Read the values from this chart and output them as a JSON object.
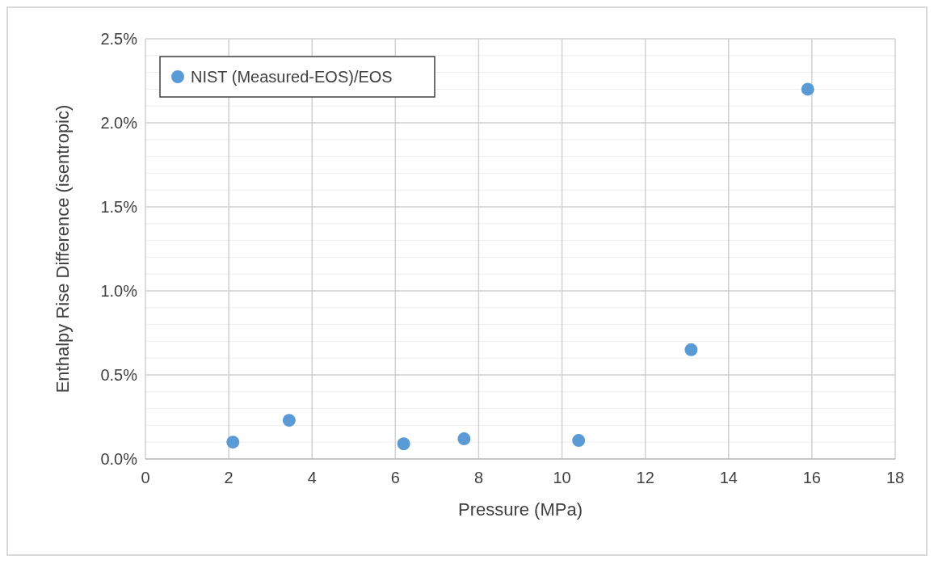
{
  "chart_data": {
    "type": "scatter",
    "xlabel": "Pressure (MPa)",
    "ylabel": "Enthalpy Rise Difference (isentropic)",
    "x": [
      2.1,
      3.45,
      6.2,
      7.65,
      10.4,
      13.1,
      15.9
    ],
    "series": [
      {
        "name": "NIST (Measured-EOS)/EOS",
        "color": "#5b9bd5",
        "values": [
          0.1,
          0.23,
          0.09,
          0.12,
          0.11,
          0.65,
          2.2
        ]
      }
    ],
    "xlim": [
      0,
      18
    ],
    "xticks": [
      0,
      2,
      4,
      6,
      8,
      10,
      12,
      14,
      16,
      18
    ],
    "ylim": [
      0,
      2.5
    ],
    "yticks": [
      {
        "value": 0,
        "label": "0.0%"
      },
      {
        "value": 0.1,
        "label": null
      },
      {
        "value": 0.2,
        "label": null
      },
      {
        "value": 0.3,
        "label": null
      },
      {
        "value": 0.4,
        "label": null
      },
      {
        "value": 0.5,
        "label": "0.5%"
      },
      {
        "value": 0.6,
        "label": null
      },
      {
        "value": 0.7,
        "label": null
      },
      {
        "value": 0.8,
        "label": null
      },
      {
        "value": 0.9,
        "label": null
      },
      {
        "value": 1.0,
        "label": "1.0%"
      },
      {
        "value": 1.1,
        "label": null
      },
      {
        "value": 1.2,
        "label": null
      },
      {
        "value": 1.3,
        "label": null
      },
      {
        "value": 1.4,
        "label": null
      },
      {
        "value": 1.5,
        "label": "1.5%"
      },
      {
        "value": 1.6,
        "label": null
      },
      {
        "value": 1.7,
        "label": null
      },
      {
        "value": 1.8,
        "label": null
      },
      {
        "value": 1.9,
        "label": null
      },
      {
        "value": 2.0,
        "label": "2.0%"
      },
      {
        "value": 2.1,
        "label": null
      },
      {
        "value": 2.2,
        "label": null
      },
      {
        "value": 2.3,
        "label": null
      },
      {
        "value": 2.4,
        "label": null
      },
      {
        "value": 2.5,
        "label": "2.5%"
      }
    ],
    "grid": true,
    "legend": "top left",
    "marker": "circle"
  }
}
